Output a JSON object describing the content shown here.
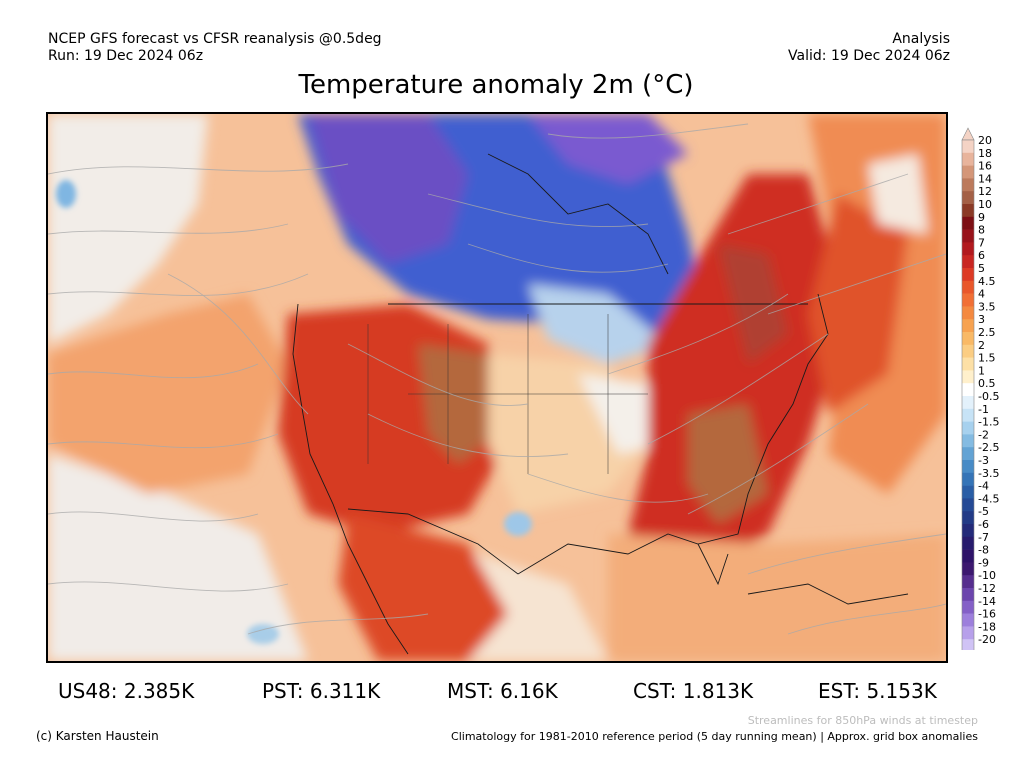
{
  "header": {
    "source_line": "NCEP GFS forecast vs CFSR reanalysis @0.5deg",
    "run_line": "Run: 19 Dec 2024 06z",
    "mode": "Analysis",
    "valid_line": "Valid: 19 Dec 2024 06z"
  },
  "title": "Temperature anomaly 2m (°C)",
  "map": {
    "region": "North America",
    "overlay": "850hPa wind streamlines",
    "colors": {
      "very_cold": "#5b3fb8",
      "cold": "#3f5fd0",
      "cool": "#a9cbe8",
      "neutral": "#f4f4f4",
      "mild": "#f8c89a",
      "warm": "#ee8a4e",
      "hot": "#d63a22",
      "very_hot": "#b4622e",
      "extreme": "#d9a28a"
    }
  },
  "colorbar": {
    "labels": [
      "20",
      "18",
      "16",
      "14",
      "12",
      "10",
      "9",
      "8",
      "7",
      "6",
      "5",
      "4.5",
      "4",
      "3.5",
      "3",
      "2.5",
      "2",
      "1.5",
      "1",
      "0.5",
      "-0.5",
      "-1",
      "-1.5",
      "-2",
      "-2.5",
      "-3",
      "-3.5",
      "-4",
      "-4.5",
      "-5",
      "-6",
      "-7",
      "-8",
      "-9",
      "-10",
      "-12",
      "-14",
      "-16",
      "-18",
      "-20"
    ],
    "colors": [
      "#f4d3c5",
      "#e8b49c",
      "#d49678",
      "#bc7a5c",
      "#a46046",
      "#8b3a26",
      "#7d0f14",
      "#98121a",
      "#b2191e",
      "#c92622",
      "#dd3a25",
      "#e9572b",
      "#f16f35",
      "#f48940",
      "#f7a250",
      "#f9b966",
      "#fbcd83",
      "#fde0a6",
      "#fff0cc",
      "#ffffff",
      "#e3f1fb",
      "#c7e3f6",
      "#a7d1ee",
      "#84bbe2",
      "#63a3d4",
      "#488bc6",
      "#3574b7",
      "#2a5ea6",
      "#254a95",
      "#223a86",
      "#232a79",
      "#271b6d",
      "#2e1268",
      "#3c186f",
      "#562e8e",
      "#6c45ad",
      "#8460c7",
      "#9d7fdc",
      "#b7a0ea",
      "#d0c3f5"
    ]
  },
  "stats": [
    {
      "label": "US48: 2.385K"
    },
    {
      "label": "PST: 6.311K"
    },
    {
      "label": "MST: 6.16K"
    },
    {
      "label": "CST: 1.813K"
    },
    {
      "label": "EST: 5.153K"
    }
  ],
  "footer": {
    "credit": "(c) Karsten Haustein",
    "streamlines_note": "Streamlines for 850hPa winds at timestep",
    "climatology_note": "Climatology for 1981-2010 reference period (5 day running mean) | Approx. grid box anomalies"
  }
}
